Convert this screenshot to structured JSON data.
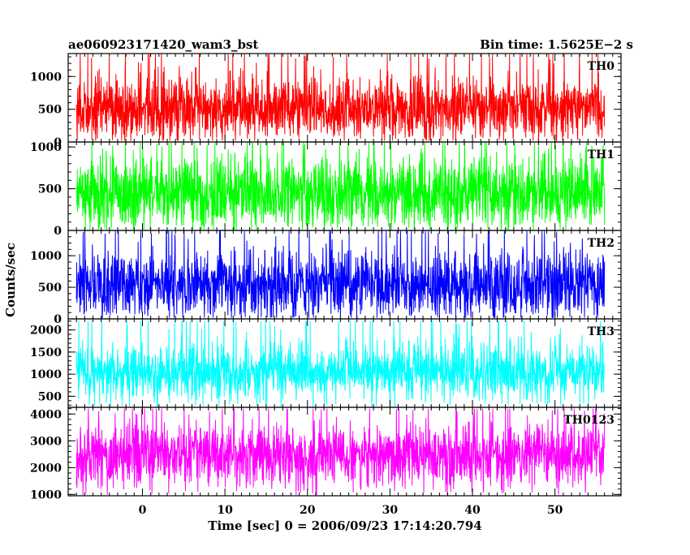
{
  "chart_data": {
    "type": "line",
    "title_left": "ae060923171420_wam3_bst",
    "title_right": "Bin time: 1.5625E−2 s",
    "xlabel": "Time [sec] 0 = 2006/09/23 17:14:20.794",
    "ylabel": "Counts/sec",
    "xlim": [
      -9,
      58
    ],
    "x_range_data": [
      -8,
      56
    ],
    "xticks": [
      0,
      10,
      20,
      30,
      40,
      50
    ],
    "xtick_labels": [
      "0",
      "10",
      "20",
      "30",
      "40",
      "50"
    ],
    "grid": false,
    "panels": [
      {
        "label": "TH0",
        "color": "#ff0000",
        "ylim": [
          0,
          1350
        ],
        "yticks": [
          0,
          500,
          1000
        ],
        "ytick_labels": [
          "0",
          "500",
          "1000"
        ],
        "mean": 520,
        "spread": 230,
        "min": 20,
        "max": 1340
      },
      {
        "label": "TH1",
        "color": "#00ff00",
        "ylim": [
          0,
          1060
        ],
        "yticks": [
          0,
          500,
          1000
        ],
        "ytick_labels": [
          "0",
          "500",
          "1000"
        ],
        "mean": 460,
        "spread": 210,
        "min": 10,
        "max": 1050
      },
      {
        "label": "TH2",
        "color": "#0000ff",
        "ylim": [
          0,
          1400
        ],
        "yticks": [
          0,
          500,
          1000
        ],
        "ytick_labels": [
          "0",
          "500",
          "1000"
        ],
        "mean": 560,
        "spread": 260,
        "min": 20,
        "max": 1390
      },
      {
        "label": "TH3",
        "color": "#00ffff",
        "ylim": [
          250,
          2250
        ],
        "yticks": [
          500,
          1000,
          1500,
          2000
        ],
        "ytick_labels": [
          "500",
          "1000",
          "1500",
          "2000"
        ],
        "mean": 1050,
        "spread": 300,
        "min": 260,
        "max": 2200
      },
      {
        "label": "TH0123",
        "color": "#ff00ff",
        "ylim": [
          950,
          4250
        ],
        "yticks": [
          1000,
          2000,
          3000,
          4000
        ],
        "ytick_labels": [
          "1000",
          "2000",
          "3000",
          "4000"
        ],
        "mean": 2500,
        "spread": 520,
        "min": 980,
        "max": 4200
      }
    ]
  }
}
